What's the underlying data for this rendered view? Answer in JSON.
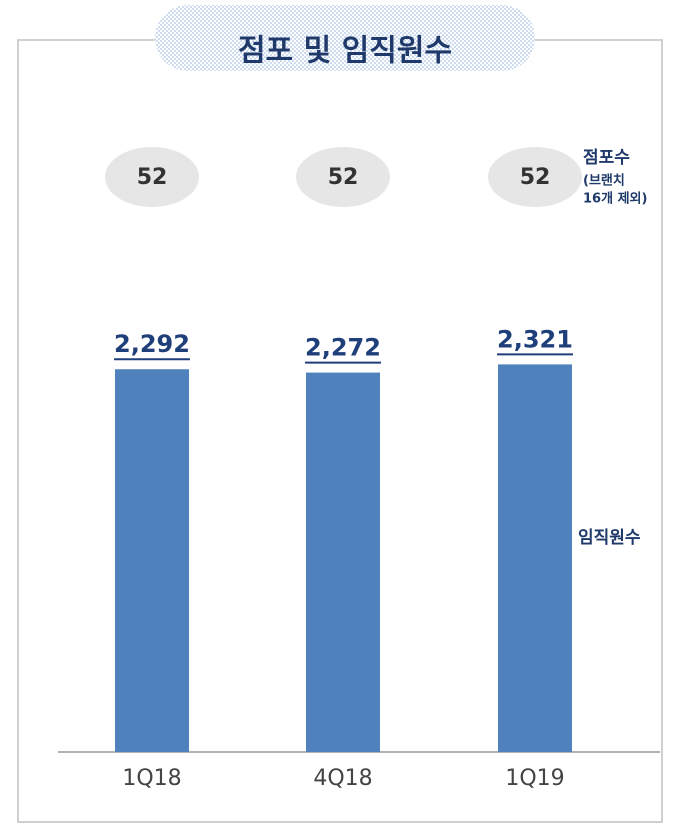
{
  "chart_data": {
    "type": "bar",
    "title": "점포 및 임직원수",
    "categories": [
      "1Q18",
      "4Q18",
      "1Q19"
    ],
    "series": [
      {
        "name": "임직원수",
        "color": "#4f81bd",
        "values": [
          2292,
          2272,
          2321
        ],
        "value_labels": [
          "2,292",
          "2,272",
          "2,321"
        ]
      },
      {
        "name": "점포수",
        "color": "#e6e6e6",
        "values": [
          52,
          52,
          52
        ],
        "note": [
          "(브랜치",
          "16개 제외)"
        ]
      }
    ],
    "ylim": [
      0,
      4000
    ]
  }
}
